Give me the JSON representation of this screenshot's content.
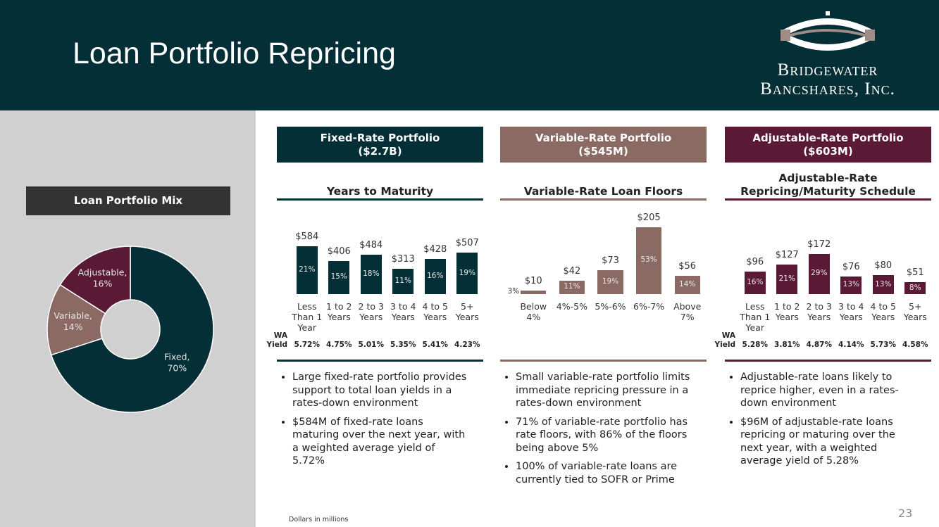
{
  "header": {
    "title": "Loan Portfolio Repricing",
    "logo": [
      "Bridgewater",
      "Bancshares, Inc."
    ]
  },
  "chart_data": [
    {
      "type": "pie",
      "title": "Loan Portfolio Mix",
      "categories": [
        "Fixed,",
        "Variable,",
        "Adjustable,"
      ],
      "values": [
        70,
        14,
        16
      ],
      "value_labels": [
        "70%",
        "14%",
        "16%"
      ],
      "colors": [
        "#052f36",
        "#8b6a63",
        "#5a1a35"
      ]
    },
    {
      "type": "bar",
      "title": [
        "Years to Maturity"
      ],
      "categories": [
        "Less Than 1 Year",
        "1 to 2 Years",
        "2 to 3 Years",
        "3 to 4 Years",
        "4 to 5 Years",
        "5+ Years"
      ],
      "values": [
        584,
        406,
        484,
        313,
        428,
        507
      ],
      "value_labels": [
        "$584",
        "$406",
        "$484",
        "$313",
        "$428",
        "$507"
      ],
      "bar_labels": [
        "21%",
        "15%",
        "18%",
        "11%",
        "16%",
        "19%"
      ],
      "yield_label": "WA Yield",
      "yields": [
        "5.72%",
        "4.75%",
        "5.01%",
        "5.35%",
        "5.41%",
        "4.23%"
      ],
      "color": "#052f36",
      "ylim": [
        0,
        1000
      ]
    },
    {
      "type": "bar",
      "title": [
        "Variable-Rate Loan Floors"
      ],
      "categories": [
        "Below 4%",
        "4%-5%",
        "5%-6%",
        "6%-7%",
        "Above 7%"
      ],
      "values": [
        10,
        42,
        73,
        205,
        56
      ],
      "value_labels": [
        "$10",
        "$42",
        "$73",
        "$205",
        "$56"
      ],
      "bar_labels": [
        "3%",
        "11%",
        "19%",
        "53%",
        "14%"
      ],
      "color": "#8b6a63",
      "ylim": [
        0,
        250
      ]
    },
    {
      "type": "bar",
      "title": [
        "Adjustable-Rate",
        "Repricing/Maturity Schedule"
      ],
      "categories": [
        "Less Than 1 Year",
        "1 to 2 Years",
        "2 to 3 Years",
        "3 to 4 Years",
        "4 to 5 Years",
        "5+ Years"
      ],
      "values": [
        96,
        127,
        172,
        76,
        80,
        51
      ],
      "value_labels": [
        "$96",
        "$127",
        "$172",
        "$76",
        "$80",
        "$51"
      ],
      "bar_labels": [
        "16%",
        "21%",
        "29%",
        "13%",
        "13%",
        "8%"
      ],
      "yield_label": "WA Yield",
      "yields": [
        "5.28%",
        "3.81%",
        "4.87%",
        "4.14%",
        "5.73%",
        "4.58%"
      ],
      "color": "#5a1a35",
      "ylim": [
        0,
        350
      ]
    }
  ],
  "panels": [
    {
      "heading": [
        "Fixed-Rate Portfolio",
        "($2.7B)"
      ],
      "bullets": [
        "Large fixed-rate portfolio provides support to total loan yields in a rates-down environment",
        "$584M of fixed-rate loans maturing over the next year, with a weighted average yield of 5.72%"
      ]
    },
    {
      "heading": [
        "Variable-Rate Portfolio",
        "($545M)"
      ],
      "bullets": [
        "Small variable-rate portfolio limits immediate repricing pressure in a rates-down environment",
        "71% of variable-rate portfolio has rate floors, with 86% of the floors being above 5%",
        "100% of variable-rate loans are currently tied to SOFR or Prime"
      ]
    },
    {
      "heading": [
        "Adjustable-Rate Portfolio",
        "($603M)"
      ],
      "bullets": [
        "Adjustable-rate loans likely to reprice higher, even in a rates-down environment",
        "$96M of adjustable-rate loans repricing or maturing over the next year, with a weighted average yield of 5.28%"
      ]
    }
  ],
  "footnote": "Dollars in millions",
  "page_number": "23"
}
